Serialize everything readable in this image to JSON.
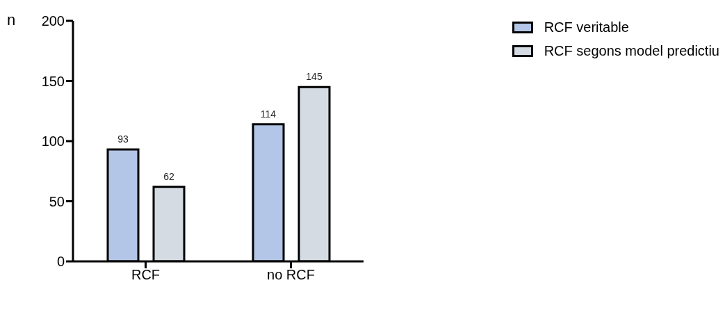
{
  "chart_data": {
    "type": "bar",
    "ylabel": "n",
    "categories": [
      "RCF",
      "no RCF"
    ],
    "series": [
      {
        "name": "RCF veritable",
        "color": "#b4c6e7",
        "values": [
          93,
          114
        ]
      },
      {
        "name": "RCF segons model predictiu",
        "color": "#d5dbe3",
        "values": [
          62,
          145
        ]
      }
    ],
    "ylim": [
      0,
      200
    ],
    "yticks": [
      0,
      50,
      100,
      150,
      200
    ],
    "legend": "top right",
    "data_labels": true
  }
}
